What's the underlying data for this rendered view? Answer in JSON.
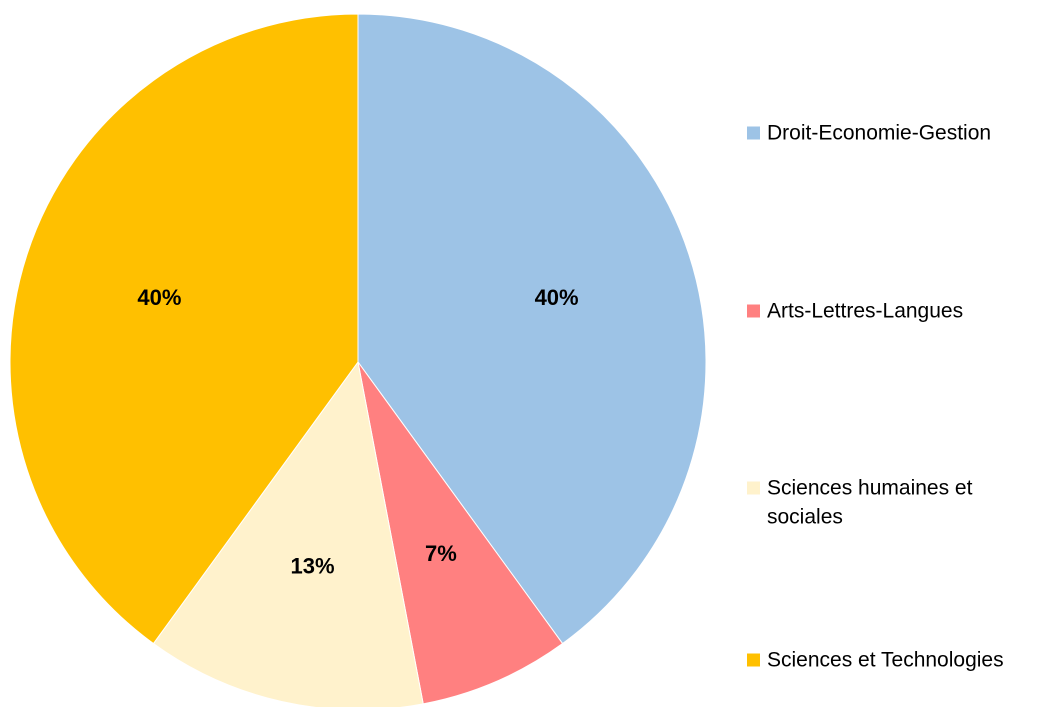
{
  "chart_data": {
    "type": "pie",
    "title": "",
    "slices": [
      {
        "label": "Droit-Economie-Gestion",
        "value": 40,
        "display": "40%",
        "color": "#9DC3E6"
      },
      {
        "label": "Arts-Lettres-Langues",
        "value": 7,
        "display": "7%",
        "color": "#FF8080"
      },
      {
        "label": "Sciences humaines et sociales",
        "value": 13,
        "display": "13%",
        "color": "#FFF2CC"
      },
      {
        "label": "Sciences et Technologies",
        "value": 40,
        "display": "40%",
        "color": "#FFC000"
      }
    ],
    "legend": {
      "position": "right",
      "entries": [
        {
          "lines": [
            "Droit-Economie-Gestion"
          ],
          "color": "#9DC3E6"
        },
        {
          "lines": [
            "Arts-Lettres-Langues"
          ],
          "color": "#FF8080"
        },
        {
          "lines": [
            "Sciences humaines et",
            "sociales"
          ],
          "color": "#FFF2CC"
        },
        {
          "lines": [
            "Sciences et Technologies"
          ],
          "color": "#FFC000"
        }
      ]
    },
    "start_angle": "12 o'clock",
    "direction": "clockwise"
  }
}
